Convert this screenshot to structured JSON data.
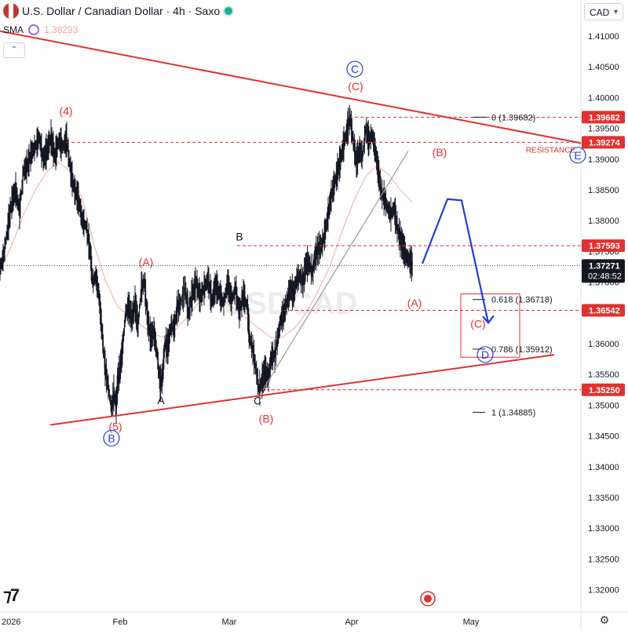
{
  "header": {
    "title": "U.S. Dollar / Canadian Dollar · 4h · Saxo",
    "indicator_name": "SMA",
    "indicator_value": "1.38293",
    "currency": "CAD"
  },
  "colors": {
    "red": "#e03131",
    "blue": "#1f3fd6",
    "candle": "#131722",
    "sma": "#f2b8b8",
    "gray": "#9a9a9a"
  },
  "chart_data": {
    "type": "line",
    "ylim": [
      1.3165,
      1.4165
    ],
    "y_ticks": [
      "1.41000",
      "1.40500",
      "1.40000",
      "1.39500",
      "1.39000",
      "1.38500",
      "1.38000",
      "1.37500",
      "1.37000",
      "1.36500",
      "1.36000",
      "1.35500",
      "1.35000",
      "1.34500",
      "1.34000",
      "1.33500",
      "1.33000",
      "1.32500",
      "1.32000"
    ],
    "x_ticks": [
      {
        "label": "2026",
        "t": 0
      },
      {
        "label": "Feb",
        "t": 153
      },
      {
        "label": "Mar",
        "t": 292
      },
      {
        "label": "Apr",
        "t": 448
      },
      {
        "label": "May",
        "t": 600
      }
    ],
    "price_path": [
      [
        0,
        1.3721
      ],
      [
        5,
        1.3745
      ],
      [
        10,
        1.379
      ],
      [
        15,
        1.383
      ],
      [
        20,
        1.385
      ],
      [
        25,
        1.3815
      ],
      [
        30,
        1.388
      ],
      [
        35,
        1.389
      ],
      [
        40,
        1.391
      ],
      [
        45,
        1.392
      ],
      [
        50,
        1.3935
      ],
      [
        55,
        1.39
      ],
      [
        60,
        1.3915
      ],
      [
        65,
        1.3935
      ],
      [
        70,
        1.3905
      ],
      [
        75,
        1.393
      ],
      [
        80,
        1.392
      ],
      [
        85,
        1.3932
      ],
      [
        90,
        1.388
      ],
      [
        95,
        1.385
      ],
      [
        100,
        1.3835
      ],
      [
        105,
        1.38
      ],
      [
        110,
        1.379
      ],
      [
        115,
        1.375
      ],
      [
        118,
        1.37
      ],
      [
        122,
        1.371
      ],
      [
        126,
        1.368
      ],
      [
        130,
        1.362
      ],
      [
        134,
        1.356
      ],
      [
        138,
        1.353
      ],
      [
        142,
        1.3495
      ],
      [
        145,
        1.352
      ],
      [
        148,
        1.35
      ],
      [
        150,
        1.354
      ],
      [
        153,
        1.356
      ],
      [
        156,
        1.359
      ],
      [
        160,
        1.365
      ],
      [
        164,
        1.366
      ],
      [
        168,
        1.364
      ],
      [
        172,
        1.3665
      ],
      [
        176,
        1.363
      ],
      [
        180,
        1.369
      ],
      [
        184,
        1.37
      ],
      [
        188,
        1.364
      ],
      [
        192,
        1.361
      ],
      [
        196,
        1.362
      ],
      [
        200,
        1.3585
      ],
      [
        204,
        1.3535
      ],
      [
        207,
        1.3545
      ],
      [
        210,
        1.36
      ],
      [
        214,
        1.3595
      ],
      [
        218,
        1.363
      ],
      [
        222,
        1.3625
      ],
      [
        226,
        1.366
      ],
      [
        230,
        1.3665
      ],
      [
        236,
        1.369
      ],
      [
        240,
        1.365
      ],
      [
        245,
        1.368
      ],
      [
        250,
        1.37
      ],
      [
        255,
        1.3675
      ],
      [
        260,
        1.369
      ],
      [
        265,
        1.3705
      ],
      [
        270,
        1.367
      ],
      [
        275,
        1.3695
      ],
      [
        280,
        1.368
      ],
      [
        285,
        1.3665
      ],
      [
        290,
        1.37
      ],
      [
        295,
        1.367
      ],
      [
        300,
        1.369
      ],
      [
        305,
        1.365
      ],
      [
        310,
        1.368
      ],
      [
        315,
        1.366
      ],
      [
        318,
        1.361
      ],
      [
        322,
        1.359
      ],
      [
        326,
        1.356
      ],
      [
        330,
        1.3525
      ],
      [
        334,
        1.354
      ],
      [
        338,
        1.3555
      ],
      [
        342,
        1.3545
      ],
      [
        346,
        1.358
      ],
      [
        350,
        1.358
      ],
      [
        354,
        1.361
      ],
      [
        358,
        1.364
      ],
      [
        362,
        1.365
      ],
      [
        366,
        1.367
      ],
      [
        370,
        1.369
      ],
      [
        374,
        1.368
      ],
      [
        378,
        1.3705
      ],
      [
        382,
        1.371
      ],
      [
        386,
        1.37
      ],
      [
        390,
        1.373
      ],
      [
        394,
        1.373
      ],
      [
        398,
        1.3715
      ],
      [
        402,
        1.3745
      ],
      [
        406,
        1.3755
      ],
      [
        410,
        1.376
      ],
      [
        414,
        1.378
      ],
      [
        418,
        1.381
      ],
      [
        422,
        1.384
      ],
      [
        426,
        1.386
      ],
      [
        430,
        1.388
      ],
      [
        434,
        1.39
      ],
      [
        438,
        1.3925
      ],
      [
        442,
        1.3945
      ],
      [
        446,
        1.3968
      ],
      [
        450,
        1.393
      ],
      [
        454,
        1.3895
      ],
      [
        458,
        1.3915
      ],
      [
        462,
        1.3905
      ],
      [
        466,
        1.395
      ],
      [
        470,
        1.393
      ],
      [
        474,
        1.394
      ],
      [
        478,
        1.3915
      ],
      [
        482,
        1.388
      ],
      [
        486,
        1.3845
      ],
      [
        490,
        1.3835
      ],
      [
        494,
        1.382
      ],
      [
        498,
        1.381
      ],
      [
        502,
        1.382
      ],
      [
        506,
        1.379
      ],
      [
        510,
        1.377
      ],
      [
        514,
        1.3755
      ],
      [
        518,
        1.374
      ],
      [
        522,
        1.3735
      ],
      [
        526,
        1.3727
      ]
    ],
    "sma_path": [
      [
        0,
        1.372
      ],
      [
        15,
        1.376
      ],
      [
        30,
        1.381
      ],
      [
        45,
        1.385
      ],
      [
        60,
        1.388
      ],
      [
        75,
        1.3895
      ],
      [
        90,
        1.388
      ],
      [
        105,
        1.3835
      ],
      [
        120,
        1.376
      ],
      [
        135,
        1.37
      ],
      [
        150,
        1.366
      ],
      [
        165,
        1.3645
      ],
      [
        180,
        1.363
      ],
      [
        195,
        1.3615
      ],
      [
        210,
        1.361
      ],
      [
        225,
        1.3625
      ],
      [
        240,
        1.3645
      ],
      [
        255,
        1.367
      ],
      [
        270,
        1.368
      ],
      [
        285,
        1.367
      ],
      [
        300,
        1.3655
      ],
      [
        315,
        1.364
      ],
      [
        330,
        1.3625
      ],
      [
        345,
        1.361
      ],
      [
        360,
        1.361
      ],
      [
        375,
        1.3625
      ],
      [
        390,
        1.365
      ],
      [
        405,
        1.3685
      ],
      [
        420,
        1.3725
      ],
      [
        435,
        1.378
      ],
      [
        450,
        1.383
      ],
      [
        465,
        1.387
      ],
      [
        480,
        1.389
      ],
      [
        495,
        1.3875
      ],
      [
        510,
        1.385
      ],
      [
        525,
        1.383
      ]
    ],
    "levels": [
      {
        "name": "level-139682",
        "price": 1.39682,
        "label": "1.39682",
        "x_start": 445,
        "highlight": true
      },
      {
        "name": "level-139274",
        "price": 1.39274,
        "label": "1.39274",
        "x_start": 84,
        "highlight": true
      },
      {
        "name": "level-137593",
        "price": 1.37593,
        "label": "1.37593",
        "x_start": 302,
        "highlight": true
      },
      {
        "name": "level-136542",
        "price": 1.36542,
        "label": "1.36542",
        "x_start": 362,
        "highlight": true
      },
      {
        "name": "level-135250",
        "price": 1.3525,
        "label": "1.35250",
        "x_start": 332,
        "highlight": true
      }
    ],
    "current_price": {
      "label": "1.37271",
      "countdown": "02:48:52",
      "price": 1.37271
    },
    "resistance_label": "RESISTANCE",
    "fib_levels": [
      {
        "ratio": "0",
        "price_label": "(1.39682)",
        "price": 1.39682
      },
      {
        "ratio": "0.618",
        "price_label": "(1.36718)",
        "price": 1.36718
      },
      {
        "ratio": "0.786",
        "price_label": "(1.35912)",
        "price": 1.35912
      },
      {
        "ratio": "1",
        "price_label": "(1.34885)",
        "price": 1.34885
      }
    ],
    "triangle_upper": [
      [
        0,
        1.4108
      ],
      [
        740,
        1.3926
      ]
    ],
    "triangle_lower": [
      [
        64,
        1.3468
      ],
      [
        706,
        1.3582
      ]
    ],
    "trendline": [
      [
        335,
        1.3525
      ],
      [
        520,
        1.3913
      ]
    ],
    "projection": [
      [
        538,
        1.373
      ],
      [
        570,
        1.3835
      ],
      [
        588,
        1.3833
      ],
      [
        622,
        1.3634
      ]
    ],
    "target_box": {
      "t1": 587,
      "t2": 662,
      "p1": 1.3681,
      "p2": 1.3578
    },
    "wave_labels": [
      {
        "text": "(4)",
        "t": 84,
        "p": 1.3972,
        "color": "red",
        "circled": false
      },
      {
        "text": "(5)",
        "t": 147,
        "p": 1.3459,
        "color": "red",
        "circled": false
      },
      {
        "text": "B",
        "t": 142,
        "p": 1.344,
        "color": "blue",
        "circled": true
      },
      {
        "text": "(A)",
        "t": 186,
        "p": 1.3726,
        "color": "red",
        "circled": false
      },
      {
        "text": "A",
        "t": 205,
        "p": 1.3502,
        "color": "black",
        "circled": false
      },
      {
        "text": "B",
        "t": 305,
        "p": 1.3768,
        "color": "black",
        "circled": false
      },
      {
        "text": "C",
        "t": 328,
        "p": 1.3501,
        "color": "black",
        "circled": false
      },
      {
        "text": "(B)",
        "t": 339,
        "p": 1.3472,
        "color": "red",
        "circled": false
      },
      {
        "text": "C",
        "t": 452,
        "p": 1.404,
        "color": "blue",
        "circled": true
      },
      {
        "text": "(C)",
        "t": 453,
        "p": 1.4012,
        "color": "red",
        "circled": false
      },
      {
        "text": "(B)",
        "t": 560,
        "p": 1.3905,
        "color": "red",
        "circled": false
      },
      {
        "text": "(A)",
        "t": 528,
        "p": 1.366,
        "color": "red",
        "circled": false
      },
      {
        "text": "(C)",
        "t": 609,
        "p": 1.3626,
        "color": "red",
        "circled": false
      },
      {
        "text": "D",
        "t": 618,
        "p": 1.3576,
        "color": "blue",
        "circled": true
      },
      {
        "text": "E",
        "t": 736,
        "p": 1.39,
        "color": "blue",
        "circled": true
      }
    ]
  }
}
